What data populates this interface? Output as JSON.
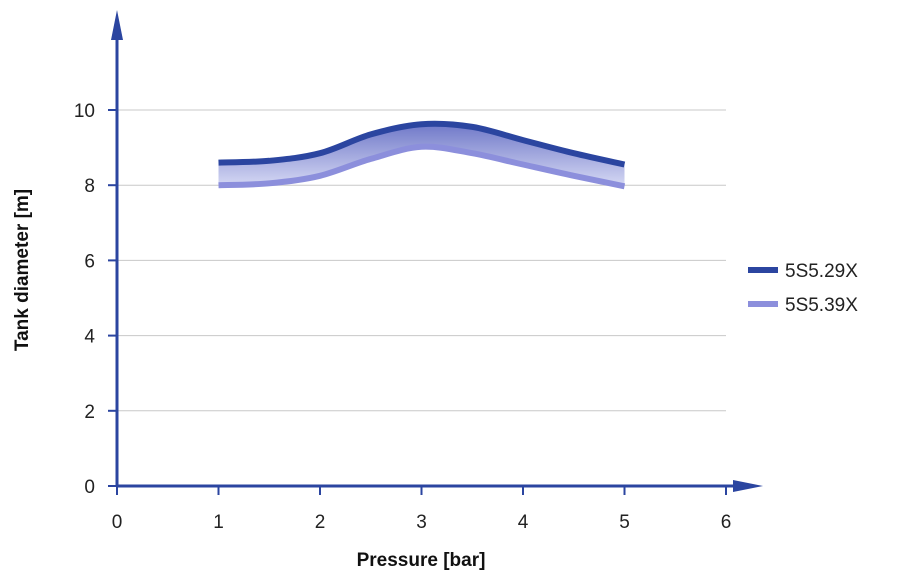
{
  "chart_data": {
    "type": "area",
    "xlabel": "Pressure [bar]",
    "ylabel": "Tank diameter [m]",
    "xlim": [
      0,
      6
    ],
    "ylim": [
      0,
      10
    ],
    "x_ticks": [
      0,
      1,
      2,
      3,
      4,
      5,
      6
    ],
    "y_ticks": [
      0,
      2,
      4,
      6,
      8,
      10
    ],
    "grid": "horizontal",
    "legend_position": "right",
    "series": [
      {
        "name": "5S5.29X",
        "color": "#2b45a0",
        "x": [
          1,
          1.5,
          2,
          2.5,
          3,
          3.5,
          4,
          4.5,
          5
        ],
        "y": [
          8.6,
          8.65,
          8.85,
          9.35,
          9.62,
          9.55,
          9.2,
          8.85,
          8.55
        ]
      },
      {
        "name": "5S5.39X",
        "color": "#8c8fdc",
        "x": [
          1,
          1.5,
          2,
          2.5,
          3,
          3.5,
          4,
          4.5,
          5
        ],
        "y": [
          8.0,
          8.05,
          8.25,
          8.7,
          9.02,
          8.85,
          8.55,
          8.25,
          7.97
        ]
      }
    ],
    "band_fill": {
      "top_color": "#6f78c8",
      "bottom_color": "#d6d9f4"
    },
    "axis_color": "#2b45a0",
    "grid_color": "#c8c8c8"
  }
}
